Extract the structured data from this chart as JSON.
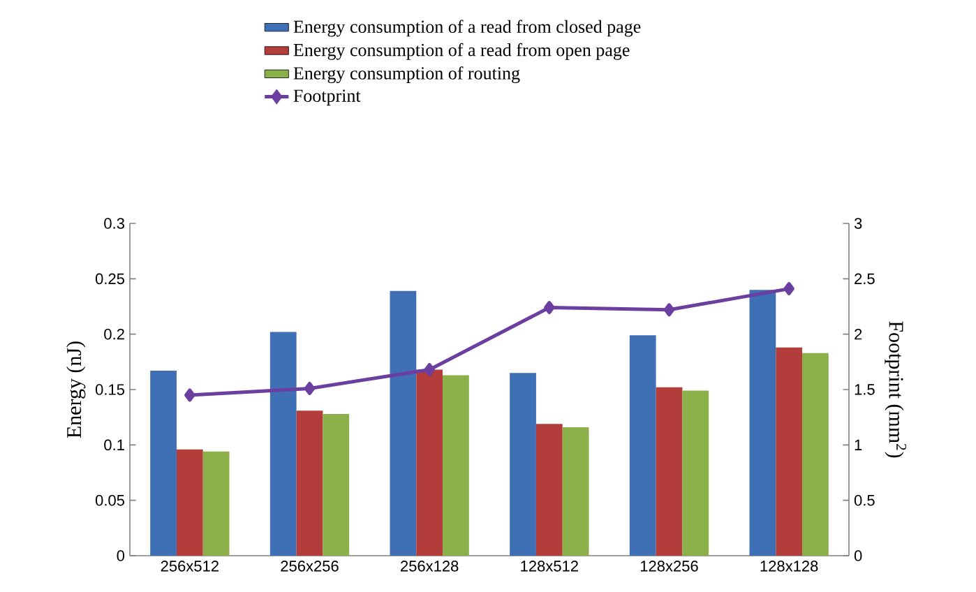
{
  "chart_data": {
    "type": "bar",
    "ylabel": "Energy (nJ)",
    "y2label": "Footprint (mm$^{2}$)",
    "categories": [
      "256x512",
      "256x256",
      "256x128",
      "128x512",
      "128x256",
      "128x128"
    ],
    "series": [
      {
        "name": "Energy consumption of a read from closed page",
        "color": "#3f6fb5",
        "values": [
          0.167,
          0.202,
          0.239,
          0.165,
          0.199,
          0.24
        ]
      },
      {
        "name": "Energy consumption of a read from open page",
        "color": "#b33d3a",
        "values": [
          0.096,
          0.131,
          0.168,
          0.119,
          0.152,
          0.188
        ]
      },
      {
        "name": "Energy consumption of routing",
        "color": "#8bb04a",
        "values": [
          0.094,
          0.128,
          0.163,
          0.116,
          0.149,
          0.183
        ]
      },
      {
        "name": "Footprint",
        "type": "line",
        "axis": "y2",
        "color": "#6b3fa0",
        "values": [
          1.45,
          1.51,
          1.68,
          2.24,
          2.22,
          2.41
        ]
      }
    ],
    "ylim": [
      0,
      0.3
    ],
    "yticks": [
      0,
      0.05,
      0.1,
      0.15,
      0.2,
      0.25,
      0.3
    ],
    "y2lim": [
      0,
      3
    ],
    "y2ticks": [
      0,
      0.5,
      1,
      1.5,
      2,
      2.5,
      3
    ],
    "marker": "diamond",
    "legend": "top",
    "grid": false
  }
}
